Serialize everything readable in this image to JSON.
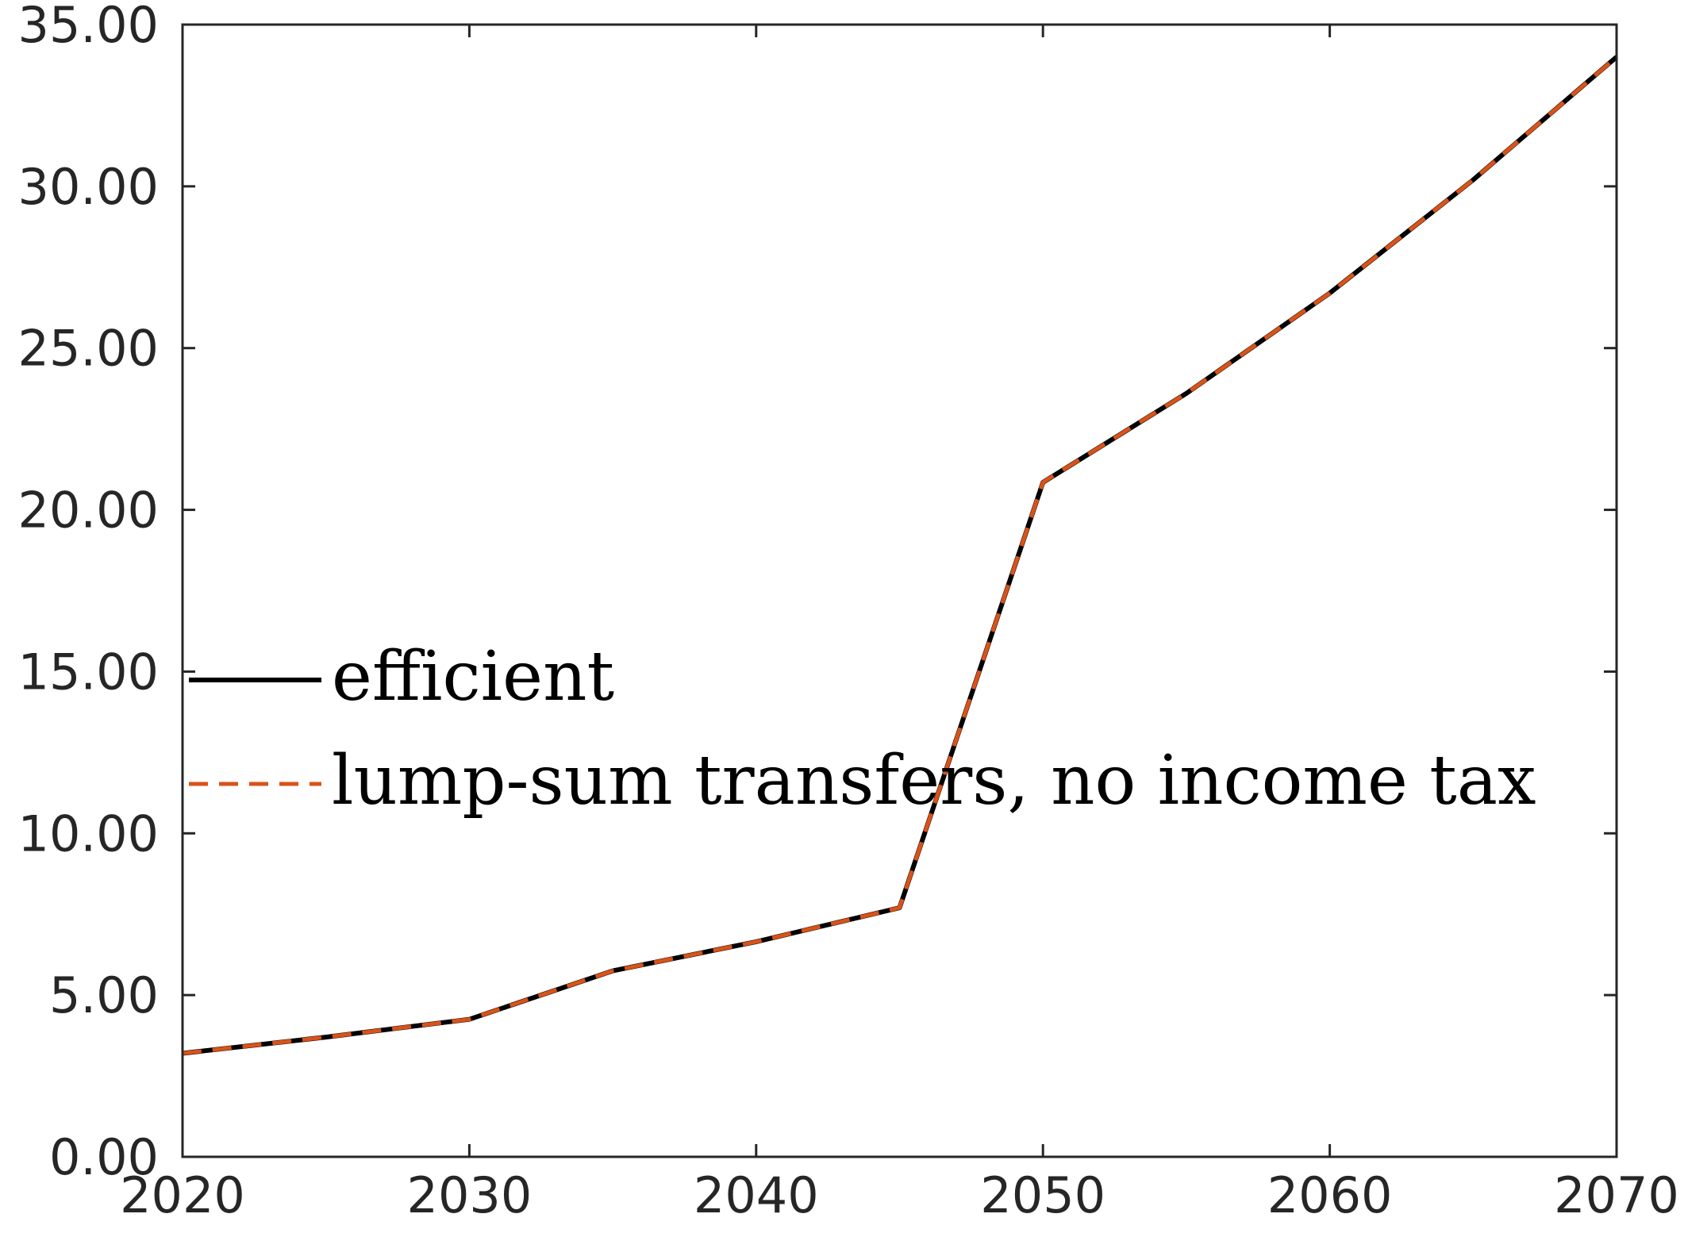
{
  "chart_data": {
    "type": "line",
    "title": "",
    "xlabel": "",
    "ylabel": "",
    "x": [
      2020,
      2025,
      2030,
      2035,
      2040,
      2045,
      2050,
      2055,
      2060,
      2065,
      2070
    ],
    "xlim": [
      2020,
      2070
    ],
    "ylim": [
      0,
      35
    ],
    "xticks": [
      2020,
      2030,
      2040,
      2050,
      2060,
      2070
    ],
    "xtick_labels": [
      "2020",
      "2030",
      "2040",
      "2050",
      "2060",
      "2070"
    ],
    "yticks": [
      0,
      5,
      10,
      15,
      20,
      25,
      30,
      35
    ],
    "ytick_labels": [
      "0.00",
      "5.00",
      "10.00",
      "15.00",
      "20.00",
      "25.00",
      "30.00",
      "35.00"
    ],
    "grid": false,
    "legend_position": "middle-left",
    "series": [
      {
        "name": "efficient",
        "color": "#000000",
        "style": "solid",
        "values": [
          3.2,
          3.7,
          4.25,
          5.75,
          6.65,
          7.7,
          20.85,
          23.6,
          26.7,
          30.2,
          34.0
        ]
      },
      {
        "name": "lump-sum transfers, no income tax",
        "color": "#D95319",
        "style": "dashed",
        "values": [
          3.2,
          3.7,
          4.25,
          5.75,
          6.65,
          7.7,
          20.85,
          23.6,
          26.7,
          30.2,
          34.0
        ]
      }
    ]
  }
}
